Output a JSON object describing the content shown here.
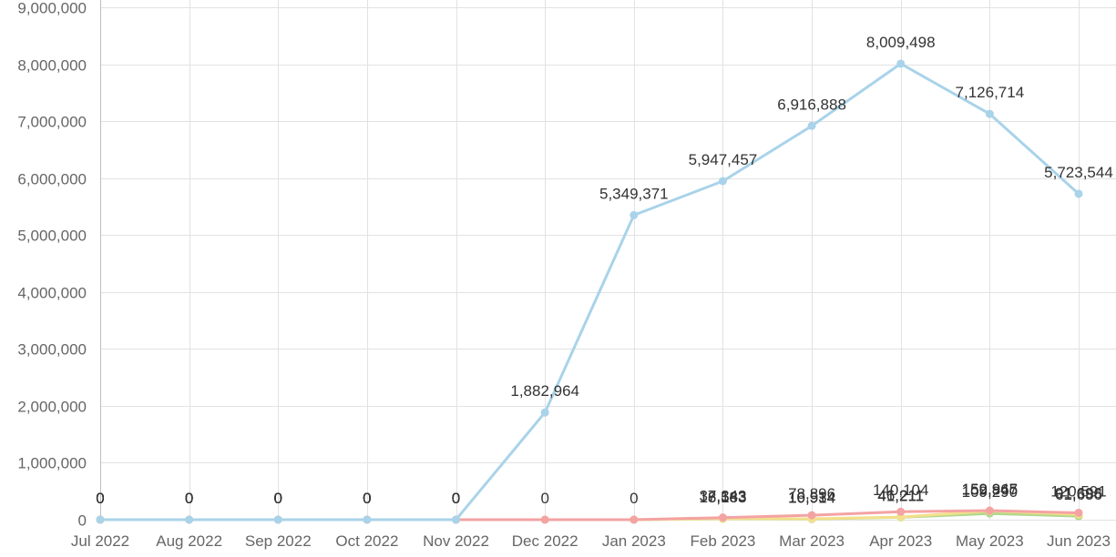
{
  "chart_data": {
    "type": "line",
    "title": "",
    "xlabel": "",
    "ylabel": "",
    "grid": true,
    "ylim": [
      0,
      9000000
    ],
    "ytick_step": 1000000,
    "categories": [
      "Jul 2022",
      "Aug 2022",
      "Sep 2022",
      "Oct 2022",
      "Nov 2022",
      "Dec 2022",
      "Jan 2023",
      "Feb 2023",
      "Mar 2023",
      "Apr 2023",
      "May 2023",
      "Jun 2023"
    ],
    "series": [
      {
        "color": "#a9d3e9",
        "values": [
          0,
          0,
          0,
          0,
          0,
          1882964,
          5349371,
          5947457,
          6916888,
          8009498,
          7126714,
          5723544
        ],
        "labels": [
          "0",
          "0",
          "0",
          "0",
          "0",
          "1,882,964",
          "5,349,371",
          "5,947,457",
          "6,916,888",
          "8,009,498",
          "7,126,714",
          "5,723,544"
        ],
        "show_labels": [
          true,
          true,
          true,
          true,
          true,
          true,
          true,
          true,
          true,
          true,
          true,
          true
        ]
      },
      {
        "color": "#f4a3a3",
        "values": [
          0,
          0,
          0,
          0,
          0,
          0,
          0,
          37343,
          78896,
          140104,
          159945,
          120591
        ],
        "labels": [
          "0",
          "0",
          "0",
          "0",
          "0",
          "0",
          "0",
          "37,343",
          "78,896",
          "140,104",
          "159,945",
          "120,591"
        ],
        "show_labels": [
          true,
          true,
          true,
          true,
          true,
          false,
          false,
          true,
          true,
          true,
          true,
          true
        ]
      },
      {
        "color": "#f3e08c",
        "values": [
          0,
          0,
          0,
          0,
          0,
          0,
          0,
          18163,
          16534,
          46211,
          152867,
          91696
        ],
        "labels": [
          "0",
          "0",
          "0",
          "0",
          "0",
          "0",
          "0",
          "18,163",
          "16,534",
          "46,211",
          "152,867",
          "91,696"
        ],
        "show_labels": [
          true,
          true,
          true,
          true,
          true,
          false,
          false,
          true,
          true,
          true,
          true,
          true
        ]
      },
      {
        "color": "#b3d78c",
        "values": [
          0,
          0,
          0,
          0,
          0,
          0,
          0,
          16583,
          10914,
          41211,
          109290,
          61656
        ],
        "labels": [
          "0",
          "0",
          "0",
          "0",
          "0",
          "0",
          "0",
          "16,583",
          "10,914",
          "41,211",
          "109,290",
          "61,656"
        ],
        "show_labels": [
          true,
          true,
          true,
          true,
          true,
          true,
          true,
          true,
          true,
          true,
          true,
          true
        ]
      }
    ]
  }
}
